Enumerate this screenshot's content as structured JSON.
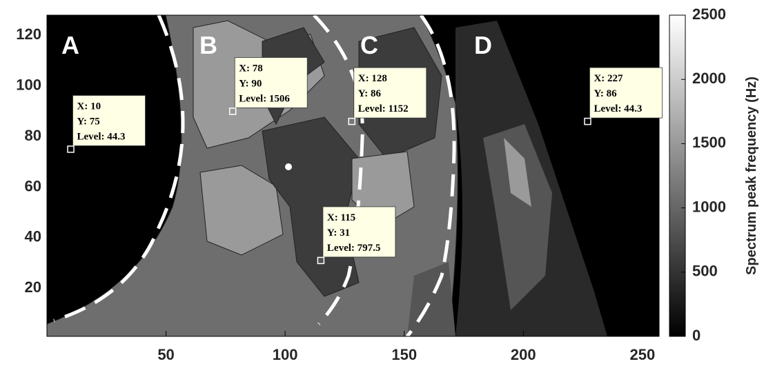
{
  "chart_data": {
    "type": "contour",
    "xlim": [
      0,
      257
    ],
    "ylim": [
      1,
      128
    ],
    "xticks": [
      50,
      100,
      150,
      200,
      250
    ],
    "yticks": [
      20,
      40,
      60,
      80,
      100,
      120
    ],
    "colorbar": {
      "label": "Spectrum peak frequency (Hz)",
      "clim": [
        0,
        2500
      ],
      "ticks": [
        0,
        500,
        1000,
        1500,
        2000,
        2500
      ]
    },
    "regions": [
      "A",
      "B",
      "C",
      "D"
    ],
    "datatips": [
      {
        "x": 10,
        "y": 75,
        "level": 44.3,
        "labels": [
          "X: 10",
          "Y: 75",
          "Level: 44.3"
        ]
      },
      {
        "x": 78,
        "y": 90,
        "level": 1506,
        "labels": [
          "X: 78",
          "Y: 90",
          "Level: 1506"
        ]
      },
      {
        "x": 128,
        "y": 86,
        "level": 1152,
        "labels": [
          "X: 128",
          "Y: 86",
          "Level: 1152"
        ]
      },
      {
        "x": 115,
        "y": 31,
        "level": 797.5,
        "labels": [
          "X: 115",
          "Y: 31",
          "Level: 797.5"
        ]
      },
      {
        "x": 227,
        "y": 86,
        "level": 44.3,
        "labels": [
          "X: 227",
          "Y: 86",
          "Level: 44.3"
        ]
      }
    ]
  }
}
